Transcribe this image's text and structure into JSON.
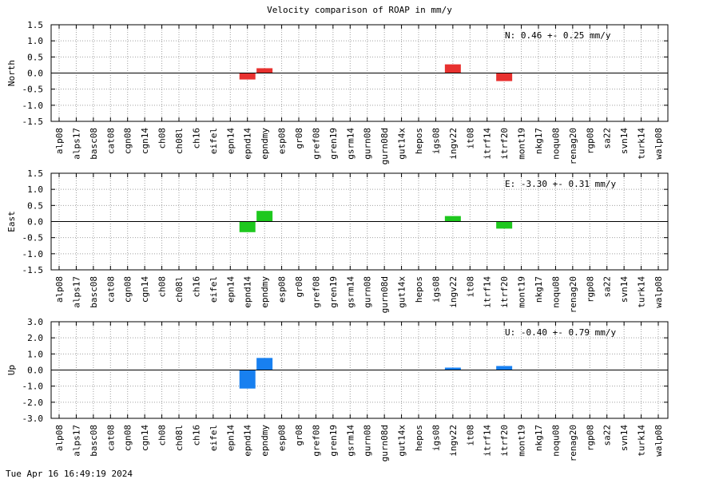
{
  "title": "Velocity comparison of ROAP in mm/y",
  "footer": "Tue Apr 16 16:49:19 2024",
  "chart_data": [
    {
      "type": "bar",
      "ylabel": "North",
      "ylim": [
        -1.5,
        1.5
      ],
      "yticks": [
        "1.5",
        "1.0",
        "0.5",
        "0.0",
        "-0.5",
        "-1.0",
        "-1.5"
      ],
      "annotation": "N:   0.46 +-  0.25 mm/y",
      "color": "#e8312f",
      "grid": true,
      "categories": [
        "alp08",
        "alps17",
        "basc08",
        "cat08",
        "cgn08",
        "cgn14",
        "ch08",
        "ch08l",
        "ch16",
        "eifel",
        "epn14",
        "epnd14",
        "epndmy",
        "esp08",
        "gr08",
        "gref08",
        "gren19",
        "gsrm14",
        "gurn08",
        "gurn08d",
        "gut14x",
        "hepos",
        "igs08",
        "ingv22",
        "it08",
        "itrf14",
        "itrf20",
        "mont19",
        "nkg17",
        "noqu08",
        "renag20",
        "rgp08",
        "sa22",
        "svn14",
        "turk14",
        "walp08"
      ],
      "values": [
        null,
        null,
        null,
        null,
        null,
        null,
        null,
        null,
        null,
        null,
        null,
        -0.2,
        0.15,
        null,
        null,
        null,
        null,
        null,
        null,
        null,
        null,
        null,
        null,
        0.27,
        null,
        null,
        -0.25,
        null,
        null,
        null,
        null,
        null,
        null,
        null,
        null,
        null
      ]
    },
    {
      "type": "bar",
      "ylabel": "East",
      "ylim": [
        -1.5,
        1.5
      ],
      "yticks": [
        "1.5",
        "1.0",
        "0.5",
        "0.0",
        "-0.5",
        "-1.0",
        "-1.5"
      ],
      "annotation": "E:  -3.30 +-  0.31 mm/y",
      "color": "#1ec81e",
      "grid": true,
      "categories": [
        "alp08",
        "alps17",
        "basc08",
        "cat08",
        "cgn08",
        "cgn14",
        "ch08",
        "ch08l",
        "ch16",
        "eifel",
        "epn14",
        "epnd14",
        "epndmy",
        "esp08",
        "gr08",
        "gref08",
        "gren19",
        "gsrm14",
        "gurn08",
        "gurn08d",
        "gut14x",
        "hepos",
        "igs08",
        "ingv22",
        "it08",
        "itrf14",
        "itrf20",
        "mont19",
        "nkg17",
        "noqu08",
        "renag20",
        "rgp08",
        "sa22",
        "svn14",
        "turk14",
        "walp08"
      ],
      "values": [
        null,
        null,
        null,
        null,
        null,
        null,
        null,
        null,
        null,
        null,
        null,
        -0.33,
        0.33,
        null,
        null,
        null,
        null,
        null,
        null,
        null,
        null,
        null,
        null,
        0.17,
        null,
        null,
        -0.22,
        null,
        null,
        null,
        null,
        null,
        null,
        null,
        null,
        null
      ]
    },
    {
      "type": "bar",
      "ylabel": "Up",
      "ylim": [
        -3.0,
        3.0
      ],
      "yticks": [
        "3.0",
        "2.0",
        "1.0",
        "0.0",
        "-1.0",
        "-2.0",
        "-3.0"
      ],
      "annotation": "U:  -0.40 +-  0.79 mm/y",
      "color": "#1880f0",
      "grid": true,
      "categories": [
        "alp08",
        "alps17",
        "basc08",
        "cat08",
        "cgn08",
        "cgn14",
        "ch08",
        "ch08l",
        "ch16",
        "eifel",
        "epn14",
        "epnd14",
        "epndmy",
        "esp08",
        "gr08",
        "gref08",
        "gren19",
        "gsrm14",
        "gurn08",
        "gurn08d",
        "gut14x",
        "hepos",
        "igs08",
        "ingv22",
        "it08",
        "itrf14",
        "itrf20",
        "mont19",
        "nkg17",
        "noqu08",
        "renag20",
        "rgp08",
        "sa22",
        "svn14",
        "turk14",
        "walp08"
      ],
      "values": [
        null,
        null,
        null,
        null,
        null,
        null,
        null,
        null,
        null,
        null,
        null,
        -1.15,
        0.75,
        null,
        null,
        null,
        null,
        null,
        null,
        null,
        null,
        null,
        null,
        0.15,
        null,
        null,
        0.25,
        null,
        null,
        null,
        null,
        null,
        null,
        null,
        null,
        null
      ]
    }
  ]
}
